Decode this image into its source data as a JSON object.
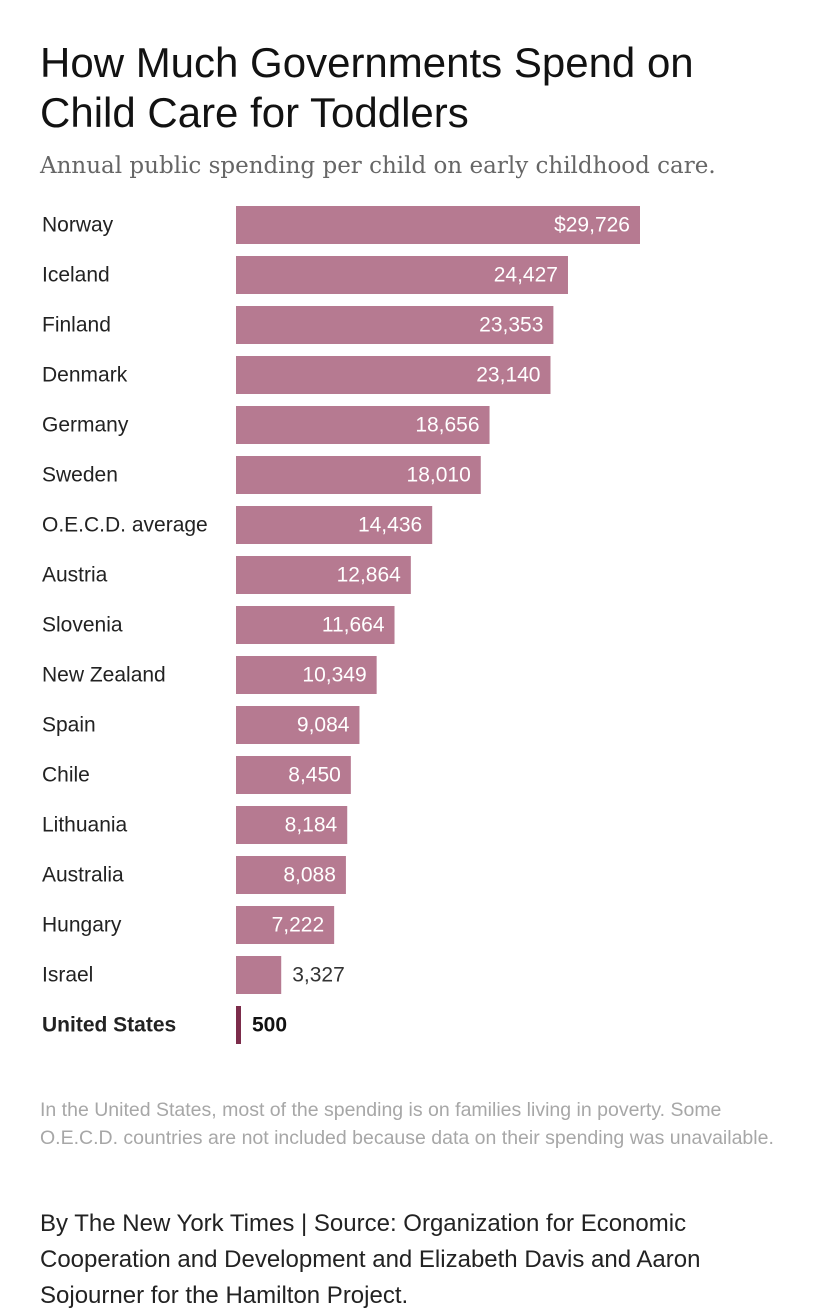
{
  "chart_data": {
    "type": "bar",
    "orientation": "horizontal",
    "title": "How Much Governments Spend on Child Care for Toddlers",
    "subtitle": "Annual public spending per child on early childhood care.",
    "categories": [
      "Norway",
      "Iceland",
      "Finland",
      "Denmark",
      "Germany",
      "Sweden",
      "O.E.C.D. average",
      "Austria",
      "Slovenia",
      "New Zealand",
      "Spain",
      "Chile",
      "Lithuania",
      "Australia",
      "Hungary",
      "Israel",
      "United States"
    ],
    "values": [
      29726,
      24427,
      23353,
      23140,
      18656,
      18010,
      14436,
      12864,
      11664,
      10349,
      9084,
      8450,
      8184,
      8088,
      7222,
      3327,
      500
    ],
    "value_labels": [
      "$29,726",
      "24,427",
      "23,353",
      "23,140",
      "18,656",
      "18,010",
      "14,436",
      "12,864",
      "11,664",
      "10,349",
      "9,084",
      "8,450",
      "8,184",
      "8,088",
      "7,222",
      "3,327",
      "500"
    ],
    "highlight": "United States",
    "xlim": [
      0,
      29726
    ],
    "grid": false,
    "colors": {
      "bar": "#b67a91",
      "highlight": "#7c2c4b",
      "label_inside": "#ffffff",
      "label_outside": "#333333",
      "category": "#222222"
    }
  },
  "notes": "In the United States, most of the spending is on families living in poverty. Some O.E.C.D. countries are not included because data on their spending was unavailable.",
  "credit": "By The New York Times | Source: Organization for Economic Cooperation and Development and Elizabeth Davis and Aaron Sojourner for the Hamilton Project."
}
